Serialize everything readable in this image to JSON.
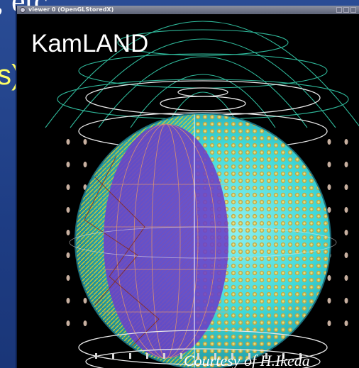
{
  "slide": {
    "top_text": ", etc.",
    "mid_text": "s)"
  },
  "window": {
    "title": "viewer 0 (OpenGLStoredX)",
    "buttons": [
      "minimize",
      "maximize",
      "close"
    ]
  },
  "viewport": {
    "label": "KamLAND",
    "credit": "Courtesy of H.Ikeda"
  },
  "colors": {
    "slide_background": "#1f3f86",
    "sphere_cyan": "#3fd9d9",
    "pmt_yellow": "#e8d020",
    "balloon_purple": "#6a3fc8",
    "wire_white": "#e8e8e8"
  }
}
